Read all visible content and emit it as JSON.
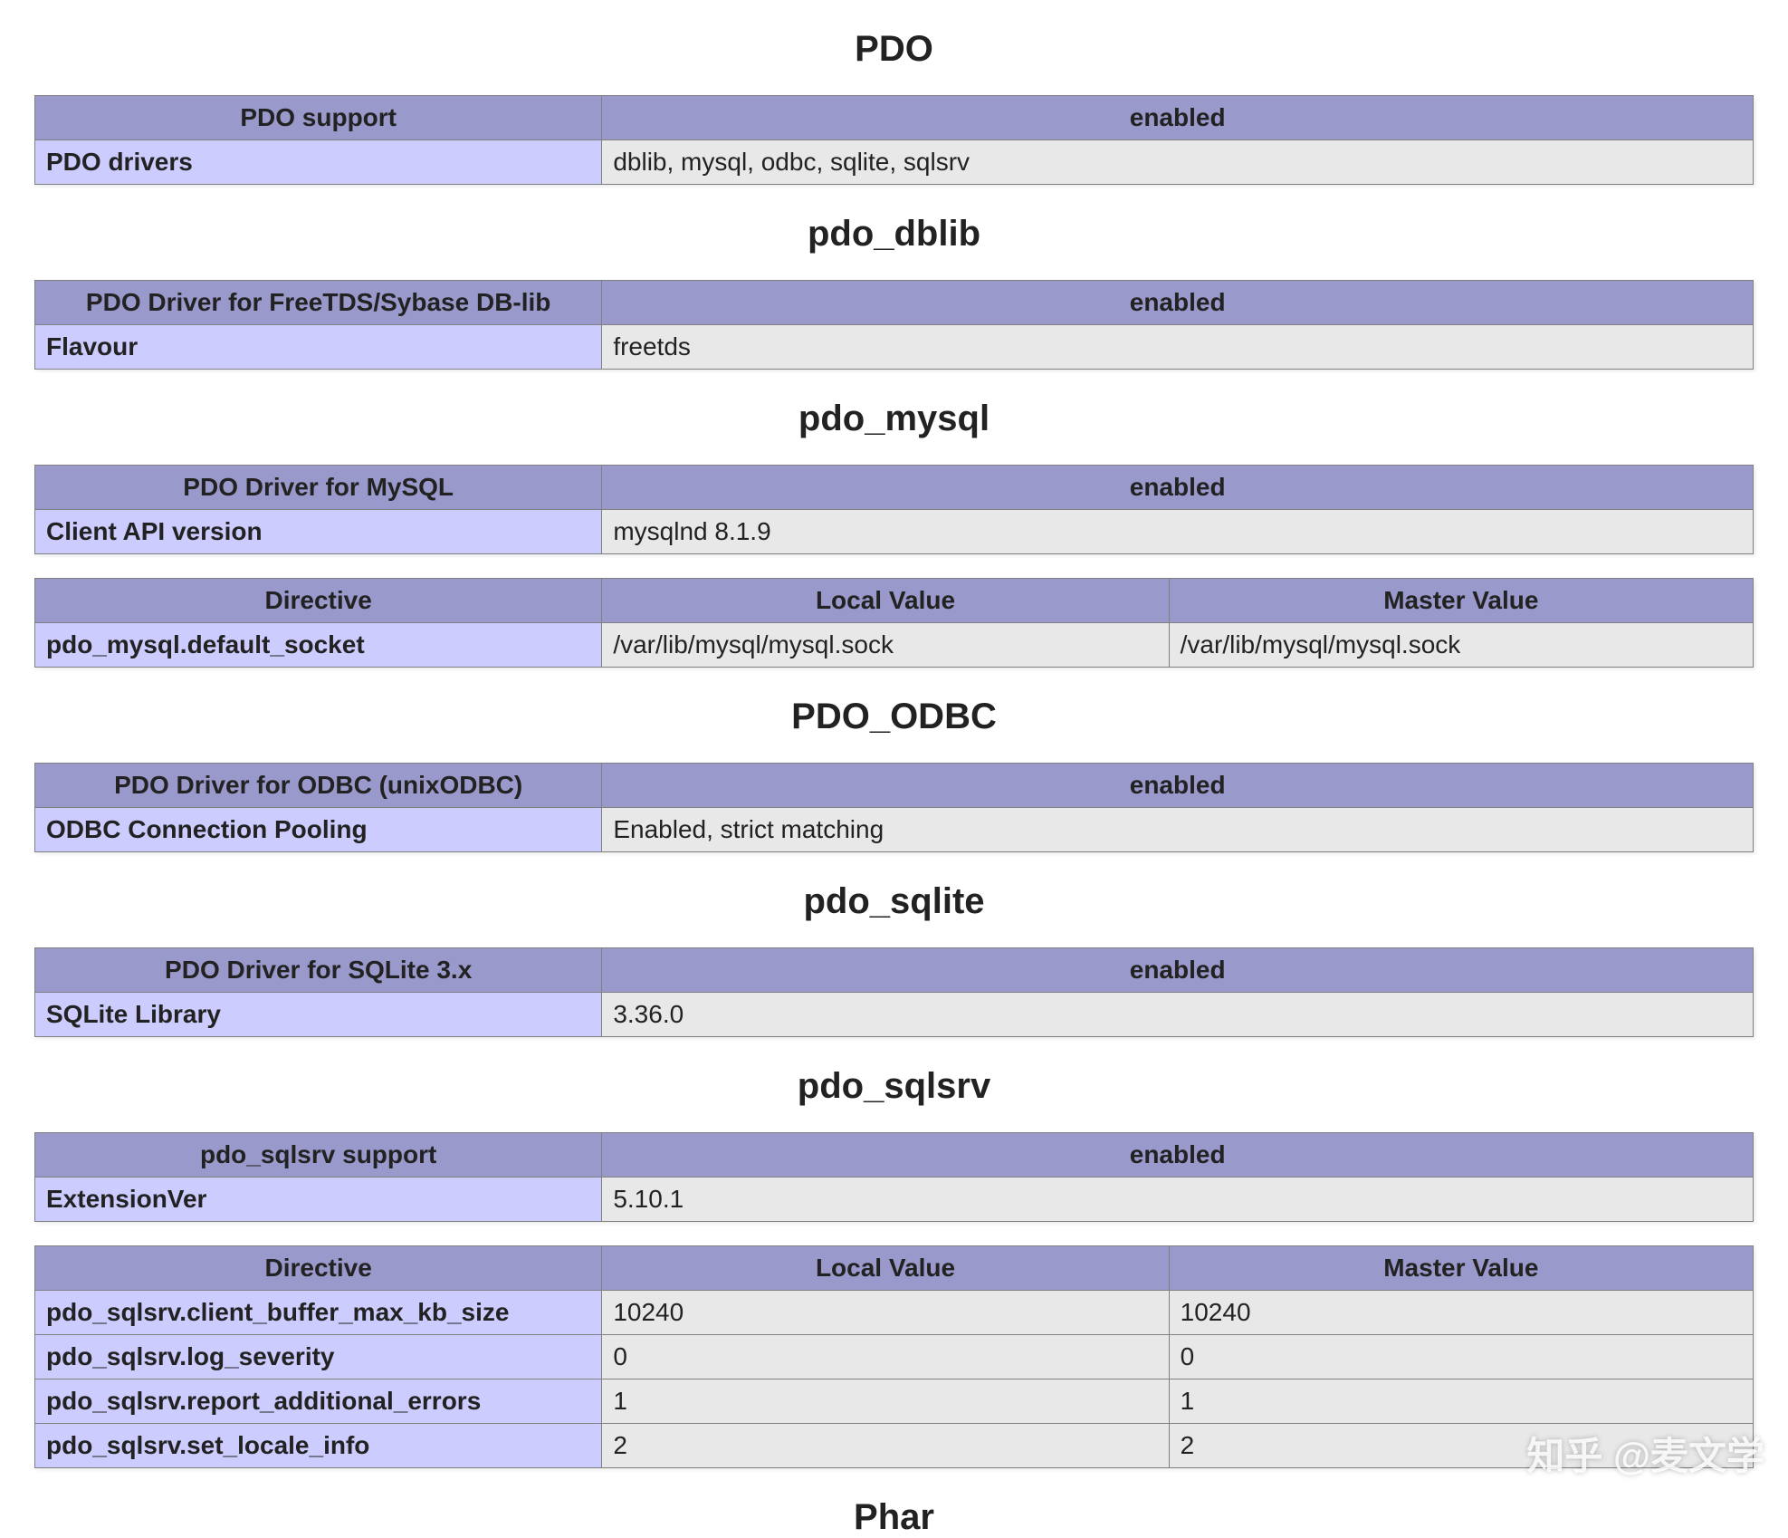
{
  "colors": {
    "header_bg": "#9999cc",
    "key_bg": "#ccccff",
    "val_bg": "#e8e8e8",
    "border": "#808080",
    "page_bg": "#ffffff",
    "text": "#222222"
  },
  "typography": {
    "heading_fontsize_pt": 30,
    "body_fontsize_pt": 21,
    "font_family": "Arial"
  },
  "watermark": "知乎 @麦文学",
  "sections": {
    "pdo": {
      "title": "PDO",
      "summary": {
        "headers": [
          "PDO support",
          "enabled"
        ],
        "rows": [
          {
            "key": "PDO drivers",
            "val": "dblib, mysql, odbc, sqlite, sqlsrv"
          }
        ]
      }
    },
    "pdo_dblib": {
      "title": "pdo_dblib",
      "summary": {
        "headers": [
          "PDO Driver for FreeTDS/Sybase DB-lib",
          "enabled"
        ],
        "rows": [
          {
            "key": "Flavour",
            "val": "freetds"
          }
        ]
      }
    },
    "pdo_mysql": {
      "title": "pdo_mysql",
      "summary": {
        "headers": [
          "PDO Driver for MySQL",
          "enabled"
        ],
        "rows": [
          {
            "key": "Client API version",
            "val": "mysqlnd 8.1.9"
          }
        ]
      },
      "directives": {
        "headers": [
          "Directive",
          "Local Value",
          "Master Value"
        ],
        "rows": [
          {
            "key": "pdo_mysql.default_socket",
            "local": "/var/lib/mysql/mysql.sock",
            "master": "/var/lib/mysql/mysql.sock"
          }
        ]
      }
    },
    "pdo_odbc": {
      "title": "PDO_ODBC",
      "summary": {
        "headers": [
          "PDO Driver for ODBC (unixODBC)",
          "enabled"
        ],
        "rows": [
          {
            "key": "ODBC Connection Pooling",
            "val": "Enabled, strict matching"
          }
        ]
      }
    },
    "pdo_sqlite": {
      "title": "pdo_sqlite",
      "summary": {
        "headers": [
          "PDO Driver for SQLite 3.x",
          "enabled"
        ],
        "rows": [
          {
            "key": "SQLite Library",
            "val": "3.36.0"
          }
        ]
      }
    },
    "pdo_sqlsrv": {
      "title": "pdo_sqlsrv",
      "summary": {
        "headers": [
          "pdo_sqlsrv support",
          "enabled"
        ],
        "rows": [
          {
            "key": "ExtensionVer",
            "val": "5.10.1"
          }
        ]
      },
      "directives": {
        "headers": [
          "Directive",
          "Local Value",
          "Master Value"
        ],
        "rows": [
          {
            "key": "pdo_sqlsrv.client_buffer_max_kb_size",
            "local": "10240",
            "master": "10240"
          },
          {
            "key": "pdo_sqlsrv.log_severity",
            "local": "0",
            "master": "0"
          },
          {
            "key": "pdo_sqlsrv.report_additional_errors",
            "local": "1",
            "master": "1"
          },
          {
            "key": "pdo_sqlsrv.set_locale_info",
            "local": "2",
            "master": "2"
          }
        ]
      }
    },
    "phar": {
      "title": "Phar"
    }
  }
}
